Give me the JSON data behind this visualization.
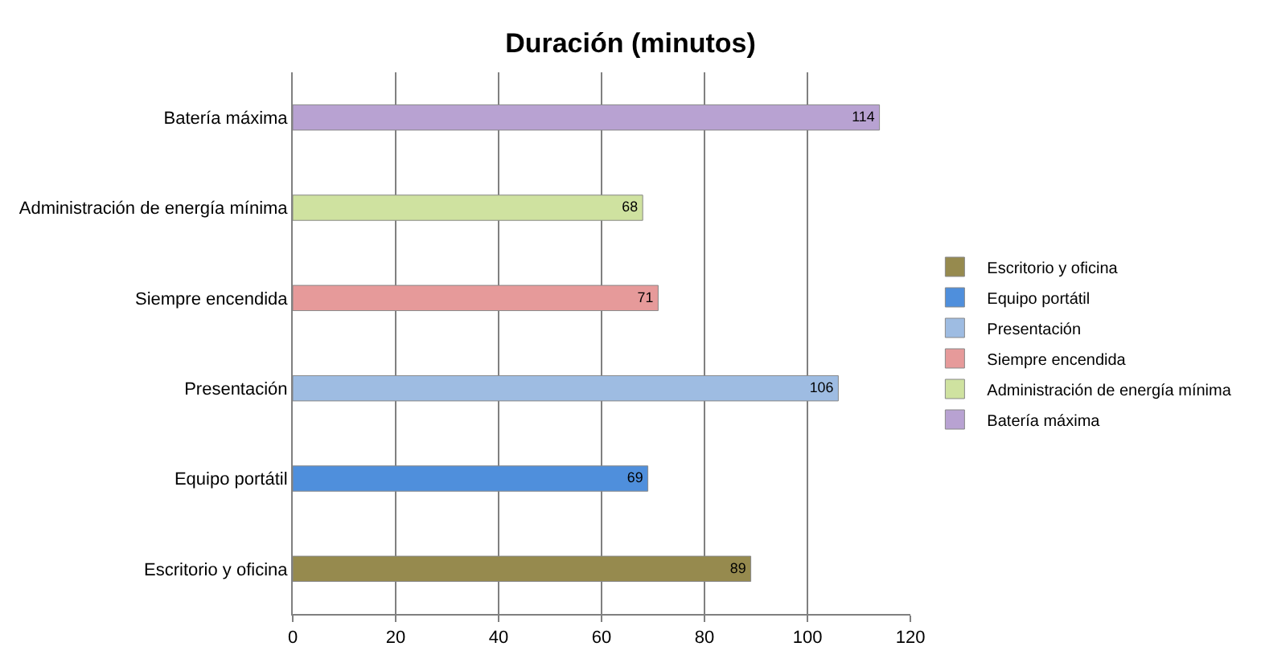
{
  "chart_data": {
    "type": "bar",
    "orientation": "horizontal",
    "title": "Duración (minutos)",
    "categories": [
      "Batería máxima",
      "Administración de energía mínima",
      "Siempre encendida",
      "Presentación",
      "Equipo portátil",
      "Escritorio y oficina"
    ],
    "series": [
      {
        "name": "Escritorio y oficina",
        "color": "#968a4e",
        "values": [
          null,
          null,
          null,
          null,
          null,
          89
        ]
      },
      {
        "name": "Equipo portátil",
        "color": "#4f8fdc",
        "values": [
          null,
          null,
          null,
          null,
          69,
          null
        ]
      },
      {
        "name": "Presentación",
        "color": "#9ebce2",
        "values": [
          null,
          null,
          null,
          106,
          null,
          null
        ]
      },
      {
        "name": "Siempre encendida",
        "color": "#e69a9a",
        "values": [
          null,
          null,
          71,
          null,
          null,
          null
        ]
      },
      {
        "name": "Administración de energía mínima",
        "color": "#cfe2a0",
        "values": [
          null,
          68,
          null,
          null,
          null,
          null
        ]
      },
      {
        "name": "Batería máxima",
        "color": "#b8a2d2",
        "values": [
          114,
          null,
          null,
          null,
          null,
          null
        ]
      }
    ],
    "xlim": [
      0,
      120
    ],
    "xticks": [
      0,
      20,
      40,
      60,
      80,
      100,
      120
    ],
    "grid": "x",
    "legend": "right",
    "data_labels": true
  }
}
